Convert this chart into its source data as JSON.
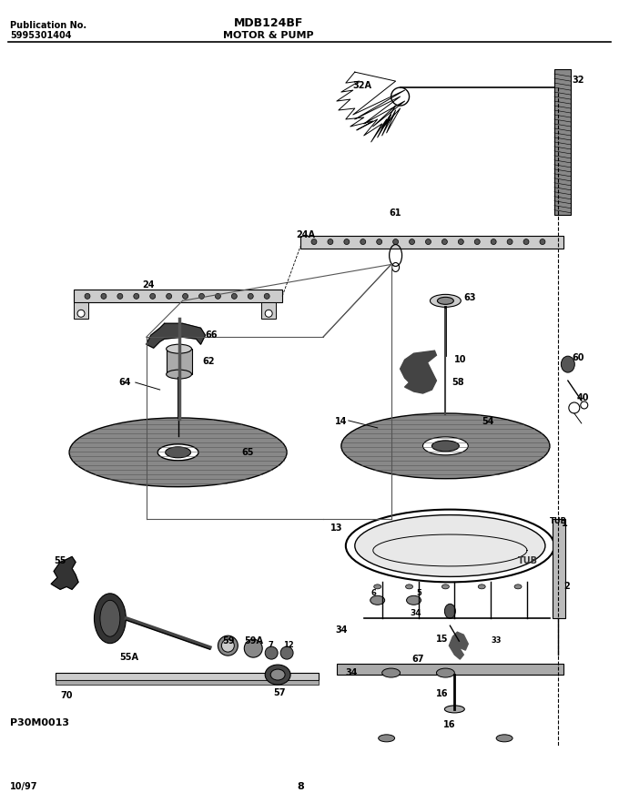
{
  "title": "MDB124BF",
  "subtitle": "MOTOR & PUMP",
  "pub_label": "Publication No.",
  "pub_num": "5995301404",
  "date": "10/97",
  "page": "8",
  "part_num": "P30M0013",
  "bg_color": "#ffffff",
  "line_color": "#000000",
  "text_color": "#000000",
  "figsize": [
    6.8,
    8.82
  ],
  "dpi": 100
}
